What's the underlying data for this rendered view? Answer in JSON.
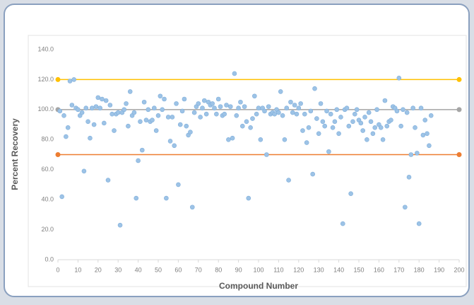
{
  "chart_data": {
    "type": "scatter",
    "x_label": "Compound Number",
    "y_label": "Percent Recovery",
    "x": [
      1,
      2,
      3,
      4,
      5,
      6,
      7,
      8,
      9,
      10,
      11,
      12,
      13,
      14,
      15,
      16,
      17,
      18,
      19,
      20,
      21,
      22,
      23,
      24,
      25,
      26,
      27,
      28,
      29,
      30,
      31,
      32,
      33,
      34,
      35,
      36,
      37,
      38,
      39,
      40,
      41,
      42,
      43,
      44,
      45,
      46,
      47,
      48,
      49,
      50,
      51,
      52,
      53,
      54,
      55,
      56,
      57,
      58,
      59,
      60,
      61,
      62,
      63,
      64,
      65,
      66,
      67,
      68,
      69,
      70,
      71,
      72,
      73,
      74,
      75,
      76,
      77,
      78,
      79,
      80,
      81,
      82,
      83,
      84,
      85,
      86,
      87,
      88,
      89,
      90,
      91,
      92,
      93,
      94,
      95,
      96,
      97,
      98,
      99,
      100,
      101,
      102,
      103,
      104,
      105,
      106,
      107,
      108,
      109,
      110,
      111,
      112,
      113,
      114,
      115,
      116,
      117,
      118,
      119,
      120,
      121,
      122,
      123,
      124,
      125,
      126,
      127,
      128,
      129,
      130,
      131,
      132,
      133,
      134,
      135,
      136,
      137,
      138,
      139,
      140,
      141,
      142,
      143,
      144,
      145,
      146,
      147,
      148,
      149,
      150,
      151,
      152,
      153,
      154,
      155,
      156,
      157,
      158,
      159,
      160,
      161,
      162,
      163,
      164,
      165,
      166,
      167,
      168,
      169,
      170,
      171,
      172,
      173,
      174,
      175,
      176,
      177,
      178,
      179,
      180,
      181,
      182,
      183,
      184,
      185,
      186
    ],
    "values": [
      99,
      42,
      96,
      82,
      88,
      119,
      103,
      120,
      101,
      100,
      96,
      98,
      59,
      101,
      92,
      81,
      101,
      90,
      102,
      108,
      101,
      107,
      91,
      106,
      53,
      103,
      97,
      86,
      97,
      98,
      23,
      98,
      100,
      104,
      89,
      112,
      96,
      98,
      41,
      66,
      92,
      73,
      105,
      93,
      100,
      92,
      93,
      101,
      86,
      96,
      109,
      100,
      107,
      41,
      95,
      79,
      95,
      76,
      104,
      50,
      90,
      99,
      107,
      89,
      83,
      85,
      35,
      98,
      102,
      104,
      95,
      101,
      106,
      97,
      105,
      103,
      104,
      101,
      97,
      107,
      102,
      96,
      97,
      103,
      80,
      102,
      81,
      124,
      96,
      101,
      105,
      89,
      102,
      92,
      41,
      88,
      94,
      109,
      97,
      101,
      80,
      101,
      99,
      70,
      102,
      97,
      98,
      97,
      100,
      98,
      112,
      96,
      80,
      101,
      53,
      105,
      98,
      103,
      97,
      101,
      104,
      86,
      97,
      78,
      88,
      99,
      57,
      114,
      94,
      84,
      104,
      92,
      89,
      99,
      72,
      97,
      88,
      92,
      100,
      84,
      95,
      24,
      100,
      101,
      89,
      44,
      92,
      97,
      100,
      93,
      91,
      86,
      95,
      80,
      98,
      92,
      84,
      88,
      100,
      90,
      88,
      80,
      106,
      89,
      92,
      93,
      102,
      101,
      99,
      121,
      89,
      100,
      35,
      98,
      55,
      70,
      101,
      88,
      71,
      24,
      101,
      83,
      93,
      84,
      76,
      96
    ],
    "color": "#9dc3e6",
    "reference_lines": [
      {
        "value": 120,
        "color": "#ffc000"
      },
      {
        "value": 100,
        "color": "#a5a5a5"
      },
      {
        "value": 70,
        "color": "#ed7d31"
      }
    ],
    "xlim": [
      0,
      200
    ],
    "xticks": [
      0,
      10,
      20,
      30,
      40,
      50,
      60,
      70,
      80,
      90,
      100,
      110,
      120,
      130,
      140,
      150,
      160,
      170,
      180,
      190,
      200
    ],
    "ylim": [
      0,
      140
    ],
    "yticks": [
      {
        "value": 0,
        "label": "0.0"
      },
      {
        "value": 20,
        "label": "20.0"
      },
      {
        "value": 40,
        "label": "40.0"
      },
      {
        "value": 60,
        "label": "60.0"
      },
      {
        "value": 80,
        "label": "80.0"
      },
      {
        "value": 100,
        "label": "100.0"
      },
      {
        "value": 120,
        "label": "120.0"
      },
      {
        "value": 140,
        "label": "140.0"
      }
    ],
    "grid": false
  }
}
